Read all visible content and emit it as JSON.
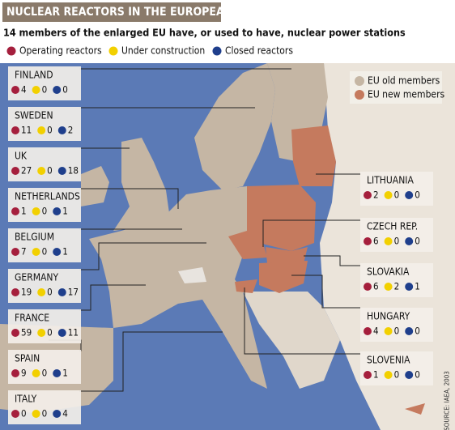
{
  "title": "NUCLEAR REACTORS IN THE EUROPEAN UNION",
  "subtitle": "14 members of the enlarged EU have, or used to have, nuclear power stations",
  "legend": [
    {
      "label": "Operating reactors",
      "color": "#a51f3d"
    },
    {
      "label": "Under construction",
      "color": "#f2d000"
    },
    {
      "label": "Closed reactors",
      "color": "#1f3f8c"
    }
  ],
  "map_legend": [
    {
      "label": "EU old members",
      "color": "#c5b6a4"
    },
    {
      "label": "EU new members",
      "color": "#c57a5e"
    }
  ],
  "countries": [
    {
      "name": "FINLAND",
      "counts": [
        4,
        0,
        0
      ]
    },
    {
      "name": "SWEDEN",
      "counts": [
        11,
        0,
        2
      ]
    },
    {
      "name": "UK",
      "counts": [
        27,
        0,
        18
      ]
    },
    {
      "name": "NETHERLANDS",
      "counts": [
        1,
        0,
        1
      ]
    },
    {
      "name": "BELGIUM",
      "counts": [
        7,
        0,
        1
      ]
    },
    {
      "name": "GERMANY",
      "counts": [
        19,
        0,
        17
      ]
    },
    {
      "name": "FRANCE",
      "counts": [
        59,
        0,
        11
      ]
    },
    {
      "name": "SPAIN",
      "counts": [
        9,
        0,
        1
      ]
    },
    {
      "name": "ITALY",
      "counts": [
        0,
        0,
        4
      ]
    },
    {
      "name": "LITHUANIA",
      "counts": [
        2,
        0,
        0
      ]
    },
    {
      "name": "CZECH REP.",
      "counts": [
        6,
        0,
        0
      ]
    },
    {
      "name": "SLOVAKIA",
      "counts": [
        6,
        2,
        1
      ]
    },
    {
      "name": "HUNGARY",
      "counts": [
        4,
        0,
        0
      ]
    },
    {
      "name": "SLOVENIA",
      "counts": [
        1,
        0,
        0
      ]
    }
  ],
  "source": "SOURCE: IAEA, 2003"
}
